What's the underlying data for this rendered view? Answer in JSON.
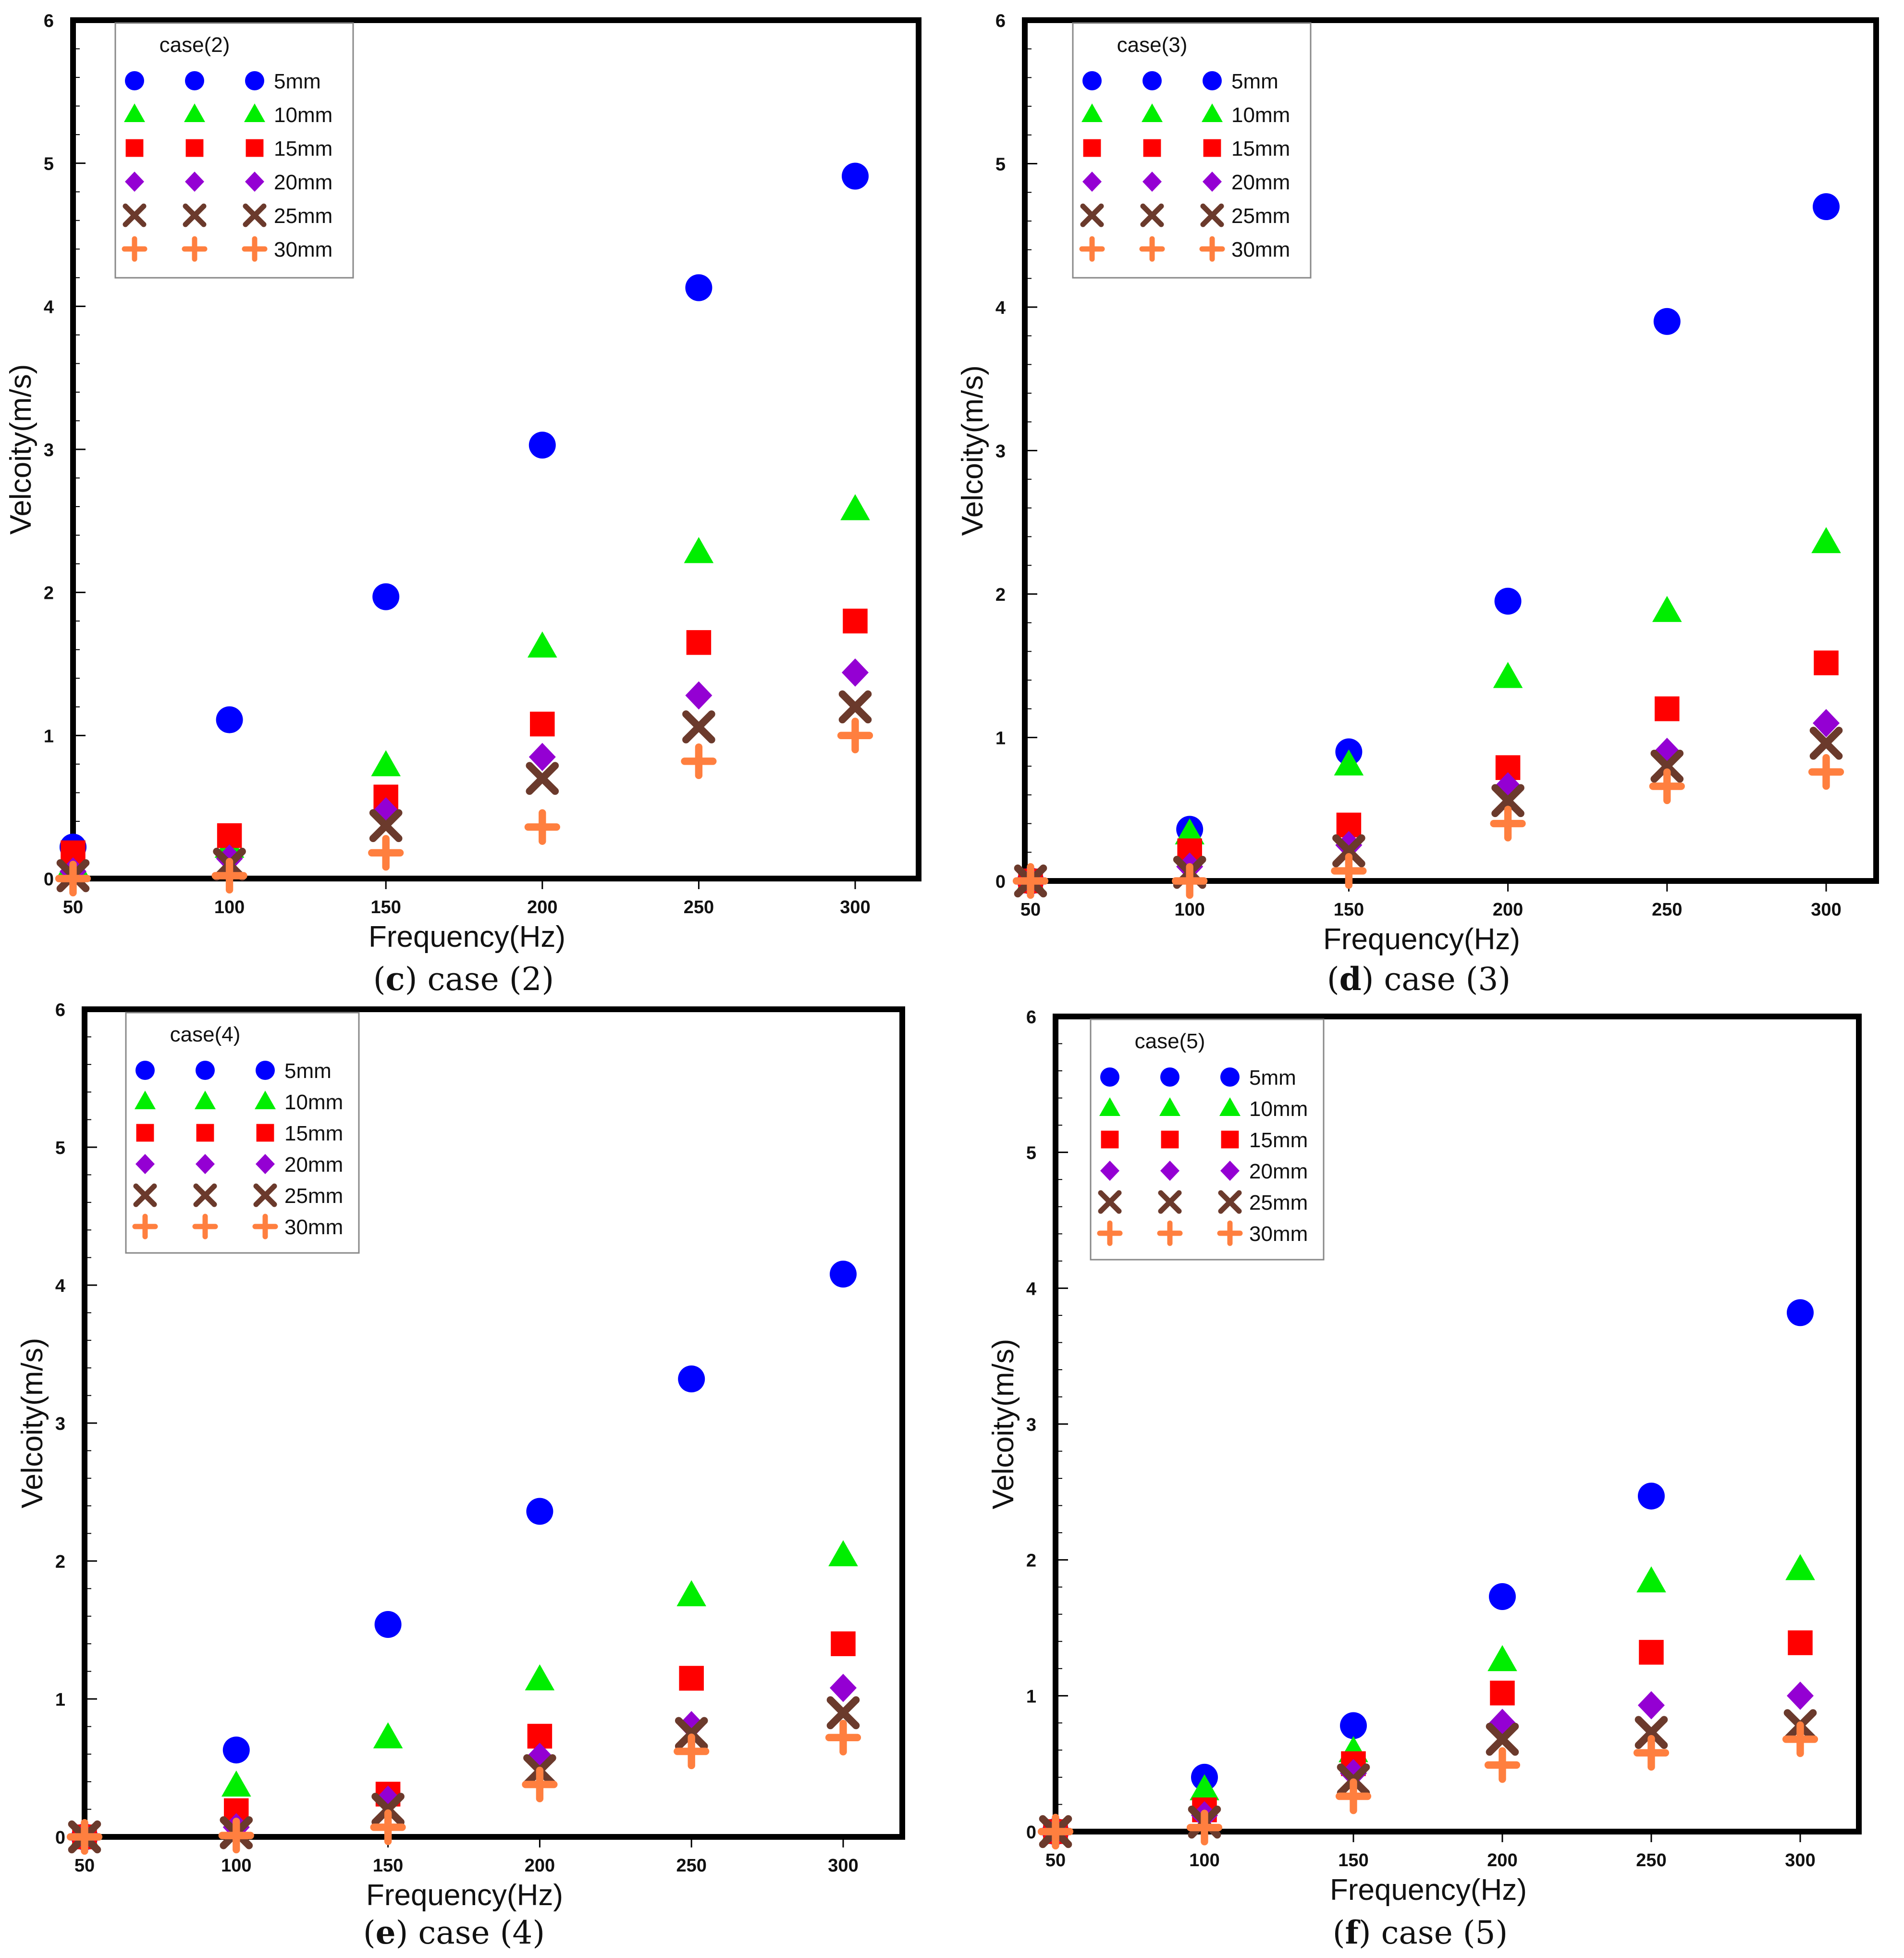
{
  "colors": {
    "5mm": "#0000ff",
    "10mm": "#00ee00",
    "15mm": "#ff0000",
    "20mm": "#9400d3",
    "25mm": "#6b3a2c",
    "30mm": "#ff7f3f"
  },
  "chart_data": [
    {
      "type": "scatter",
      "caption_letter": "c",
      "caption_text": "case (2)",
      "legend_title": "case(2)",
      "xlabel": "Frequency(Hz)",
      "ylabel": "Velcoity(m/s)",
      "x": [
        50,
        100,
        150,
        200,
        250,
        300
      ],
      "x_tick_labels": [
        "50",
        "100",
        "150",
        "200",
        "250",
        "300"
      ],
      "y_tick_labels": [
        "0",
        "1",
        "2",
        "3",
        "4",
        "5",
        "6"
      ],
      "ylim": [
        0,
        6
      ],
      "series": [
        {
          "name": "5mm",
          "marker": "circle",
          "values": [
            0.22,
            1.11,
            1.97,
            3.03,
            4.13,
            4.91
          ]
        },
        {
          "name": "10mm",
          "marker": "triangle",
          "values": [
            0.1,
            0.22,
            0.79,
            1.62,
            2.28,
            2.58
          ]
        },
        {
          "name": "15mm",
          "marker": "square",
          "values": [
            0.18,
            0.3,
            0.57,
            1.08,
            1.65,
            1.8
          ]
        },
        {
          "name": "20mm",
          "marker": "diamond",
          "values": [
            0.05,
            0.14,
            0.47,
            0.85,
            1.28,
            1.44
          ]
        },
        {
          "name": "25mm",
          "marker": "x",
          "values": [
            0.02,
            0.1,
            0.37,
            0.7,
            1.06,
            1.2
          ]
        },
        {
          "name": "30mm",
          "marker": "plus",
          "values": [
            0.0,
            0.02,
            0.18,
            0.36,
            0.82,
            1.0
          ]
        }
      ]
    },
    {
      "type": "scatter",
      "caption_letter": "d",
      "caption_text": "case (3)",
      "legend_title": "case(3)",
      "xlabel": "Frequency(Hz)",
      "ylabel": "Velcoity(m/s)",
      "x": [
        50,
        100,
        150,
        200,
        250,
        300
      ],
      "x_tick_labels": [
        "50",
        "100",
        "150",
        "200",
        "250",
        "300"
      ],
      "y_tick_labels": [
        "0",
        "1",
        "2",
        "3",
        "4",
        "5",
        "6"
      ],
      "ylim": [
        0,
        6
      ],
      "series": [
        {
          "name": "5mm",
          "marker": "circle",
          "values": [
            0.0,
            0.36,
            0.9,
            1.95,
            3.9,
            4.7
          ]
        },
        {
          "name": "10mm",
          "marker": "triangle",
          "values": [
            0.0,
            0.33,
            0.81,
            1.42,
            1.88,
            2.36
          ]
        },
        {
          "name": "15mm",
          "marker": "square",
          "values": [
            0.0,
            0.21,
            0.39,
            0.79,
            1.2,
            1.52
          ]
        },
        {
          "name": "20mm",
          "marker": "diamond",
          "values": [
            0.0,
            0.1,
            0.25,
            0.66,
            0.9,
            1.1
          ]
        },
        {
          "name": "25mm",
          "marker": "x",
          "values": [
            0.0,
            0.06,
            0.21,
            0.56,
            0.8,
            0.96
          ]
        },
        {
          "name": "30mm",
          "marker": "plus",
          "values": [
            0.0,
            0.0,
            0.07,
            0.4,
            0.66,
            0.76
          ]
        }
      ]
    },
    {
      "type": "scatter",
      "caption_letter": "e",
      "caption_text": "case (4)",
      "legend_title": "case(4)",
      "xlabel": "Frequency(Hz)",
      "ylabel": "Velcoity(m/s)",
      "x": [
        50,
        100,
        150,
        200,
        250,
        300
      ],
      "x_tick_labels": [
        "50",
        "100",
        "150",
        "200",
        "250",
        "300"
      ],
      "y_tick_labels": [
        "0",
        "1",
        "2",
        "3",
        "4",
        "5",
        "6"
      ],
      "ylim": [
        0,
        6
      ],
      "series": [
        {
          "name": "5mm",
          "marker": "circle",
          "values": [
            0.0,
            0.63,
            1.54,
            2.36,
            3.32,
            4.08
          ]
        },
        {
          "name": "10mm",
          "marker": "triangle",
          "values": [
            0.0,
            0.37,
            0.72,
            1.14,
            1.75,
            2.04
          ]
        },
        {
          "name": "15mm",
          "marker": "square",
          "values": [
            0.0,
            0.19,
            0.31,
            0.73,
            1.15,
            1.4
          ]
        },
        {
          "name": "20mm",
          "marker": "diamond",
          "values": [
            0.0,
            0.07,
            0.27,
            0.58,
            0.81,
            1.08
          ]
        },
        {
          "name": "25mm",
          "marker": "x",
          "values": [
            0.0,
            0.03,
            0.2,
            0.48,
            0.75,
            0.9
          ]
        },
        {
          "name": "30mm",
          "marker": "plus",
          "values": [
            0.0,
            0.01,
            0.07,
            0.38,
            0.62,
            0.72
          ]
        }
      ]
    },
    {
      "type": "scatter",
      "caption_letter": "f",
      "caption_text": "case (5)",
      "legend_title": "case(5)",
      "xlabel": "Frequency(Hz)",
      "ylabel": "Velcoity(m/s)",
      "x": [
        50,
        100,
        150,
        200,
        250,
        300
      ],
      "x_tick_labels": [
        "50",
        "100",
        "150",
        "200",
        "250",
        "300"
      ],
      "y_tick_labels": [
        "0",
        "1",
        "2",
        "3",
        "4",
        "5",
        "6"
      ],
      "ylim": [
        0,
        6
      ],
      "series": [
        {
          "name": "5mm",
          "marker": "circle",
          "values": [
            0.0,
            0.4,
            0.78,
            1.73,
            2.47,
            3.82
          ]
        },
        {
          "name": "10mm",
          "marker": "triangle",
          "values": [
            0.0,
            0.31,
            0.59,
            1.26,
            1.84,
            1.93
          ]
        },
        {
          "name": "15mm",
          "marker": "square",
          "values": [
            0.0,
            0.16,
            0.5,
            1.02,
            1.32,
            1.39
          ]
        },
        {
          "name": "20mm",
          "marker": "diamond",
          "values": [
            0.0,
            0.12,
            0.43,
            0.8,
            0.93,
            1.0
          ]
        },
        {
          "name": "25mm",
          "marker": "x",
          "values": [
            0.0,
            0.07,
            0.38,
            0.68,
            0.73,
            0.78
          ]
        },
        {
          "name": "30mm",
          "marker": "plus",
          "values": [
            0.0,
            0.03,
            0.26,
            0.49,
            0.58,
            0.68
          ]
        }
      ]
    }
  ]
}
